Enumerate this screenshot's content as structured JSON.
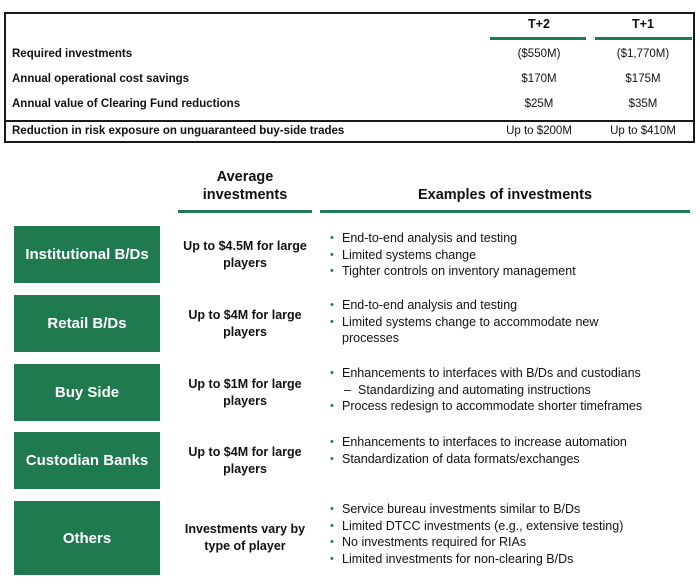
{
  "table": {
    "columns": [
      "T+2",
      "T+1"
    ],
    "rows": [
      {
        "label": "Required investments",
        "t2": "($550M)",
        "t1": "($1,770M)"
      },
      {
        "label": "Annual operational cost savings",
        "t2": "$170M",
        "t1": "$175M"
      },
      {
        "label": "Annual value of Clearing Fund reductions",
        "t2": "$25M",
        "t1": "$35M"
      },
      {
        "label": "Reduction in risk exposure on unguaranteed buy-side trades",
        "t2": "Up to $200M",
        "t1": "Up to $410M"
      }
    ]
  },
  "headers": {
    "average_investments": "Average investments",
    "examples": "Examples of investments"
  },
  "categories": [
    {
      "name": "Institutional B/Ds",
      "investment": "Up to $4.5M for large players",
      "examples": [
        {
          "text": "End-to-end analysis and testing"
        },
        {
          "text": "Limited systems change"
        },
        {
          "text": "Tighter controls on inventory management"
        }
      ]
    },
    {
      "name": "Retail B/Ds",
      "investment": "Up to $4M for large players",
      "examples": [
        {
          "text": "End-to-end analysis and testing"
        },
        {
          "text": "Limited systems change to accommodate new"
        },
        {
          "text": "processes"
        }
      ]
    },
    {
      "name": "Buy Side",
      "investment": "Up to $1M for large players",
      "examples": [
        {
          "text": "Enhancements to interfaces with B/Ds and custodians"
        },
        {
          "text": "Standardizing and automating instructions"
        },
        {
          "text": "Process redesign to accommodate shorter timeframes"
        }
      ]
    },
    {
      "name": "Custodian Banks",
      "investment": "Up to $4M for large players",
      "examples": [
        {
          "text": "Enhancements to interfaces to increase automation"
        },
        {
          "text": "Standardization of data formats/exchanges"
        }
      ]
    },
    {
      "name": "Others",
      "investment": "Investments vary by type of player",
      "examples": [
        {
          "text": "Service bureau investments similar to B/Ds"
        },
        {
          "text": "Limited DTCC investments (e.g., extensive testing)"
        },
        {
          "text": "No investments required for RIAs"
        },
        {
          "text": "Limited investments for non-clearing B/Ds"
        }
      ]
    }
  ]
}
